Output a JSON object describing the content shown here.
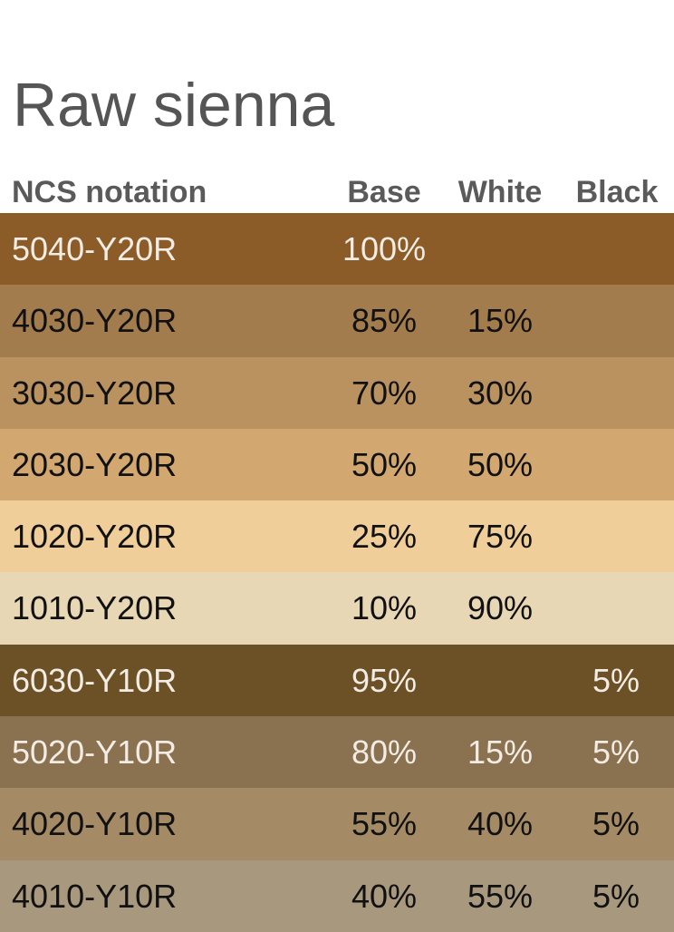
{
  "title": "Raw sienna",
  "columns": {
    "ncs": "NCS notation",
    "base": "Base",
    "white": "White",
    "black": "Black"
  },
  "rows": [
    {
      "ncs": "5040-Y20R",
      "base": "100%",
      "white": "",
      "black": "",
      "bg": "#8b5c27",
      "fg": "#f2ece4"
    },
    {
      "ncs": "4030-Y20R",
      "base": "85%",
      "white": "15%",
      "black": "",
      "bg": "#a37c4e",
      "fg": "#111111"
    },
    {
      "ncs": "3030-Y20R",
      "base": "70%",
      "white": "30%",
      "black": "",
      "bg": "#ba925f",
      "fg": "#111111"
    },
    {
      "ncs": "2030-Y20R",
      "base": "50%",
      "white": "50%",
      "black": "",
      "bg": "#d2a770",
      "fg": "#111111"
    },
    {
      "ncs": "1020-Y20R",
      "base": "25%",
      "white": "75%",
      "black": "",
      "bg": "#f0ce9a",
      "fg": "#111111"
    },
    {
      "ncs": "1010-Y20R",
      "base": "10%",
      "white": "90%",
      "black": "",
      "bg": "#e8d7b5",
      "fg": "#111111"
    },
    {
      "ncs": "6030-Y10R",
      "base": "95%",
      "white": "",
      "black": "5%",
      "bg": "#6d5126",
      "fg": "#f2ece4"
    },
    {
      "ncs": "5020-Y10R",
      "base": "80%",
      "white": "15%",
      "black": "5%",
      "bg": "#8a714f",
      "fg": "#f2ece4"
    },
    {
      "ncs": "4020-Y10R",
      "base": "55%",
      "white": "40%",
      "black": "5%",
      "bg": "#a48b66",
      "fg": "#111111"
    },
    {
      "ncs": "4010-Y10R",
      "base": "40%",
      "white": "55%",
      "black": "5%",
      "bg": "#a8987e",
      "fg": "#111111"
    }
  ]
}
